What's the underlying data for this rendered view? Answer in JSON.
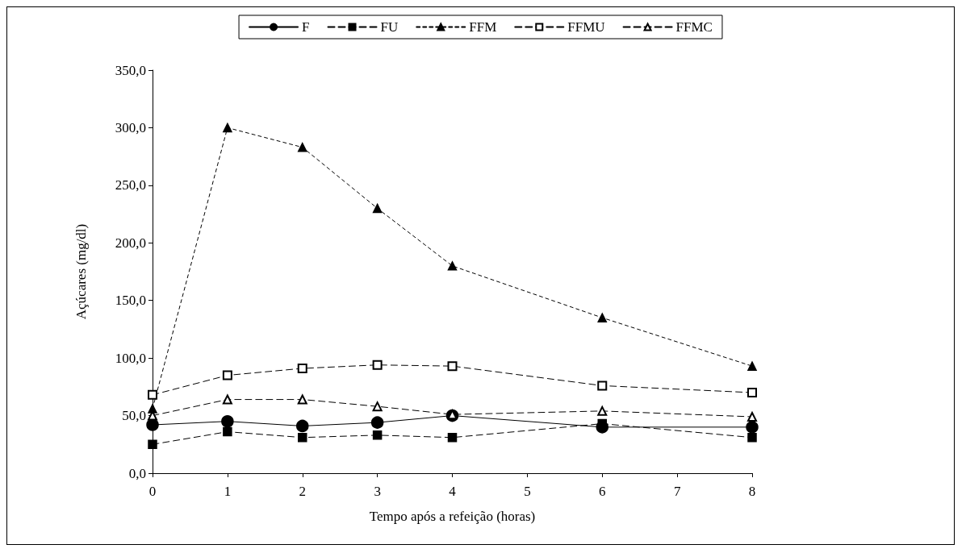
{
  "chart_data": {
    "type": "line",
    "xlabel": "Tempo após a refeição (horas)",
    "ylabel": "Açúcares (mg/dl)",
    "x": [
      0,
      1,
      2,
      3,
      4,
      6,
      8
    ],
    "xlim": [
      0,
      8
    ],
    "xticks": [
      0,
      1,
      2,
      3,
      4,
      5,
      6,
      7,
      8
    ],
    "ylim": [
      0,
      350
    ],
    "yticks": [
      {
        "value": 0,
        "label": "0,0"
      },
      {
        "value": 50,
        "label": "50,0"
      },
      {
        "value": 100,
        "label": "100,0"
      },
      {
        "value": 150,
        "label": "150,0"
      },
      {
        "value": 200,
        "label": "200,0"
      },
      {
        "value": 250,
        "label": "250,0"
      },
      {
        "value": 300,
        "label": "300,0"
      },
      {
        "value": 350,
        "label": "350,0"
      }
    ],
    "grid": false,
    "legend": "top",
    "series": [
      {
        "name": "F",
        "color": "#000000",
        "marker": "circle",
        "line_style": "solid",
        "values": [
          42,
          45,
          41,
          44,
          50,
          40,
          40
        ]
      },
      {
        "name": "FU",
        "color": "#000000",
        "marker": "square",
        "line_style": "dashed",
        "values": [
          25,
          36,
          31,
          33,
          31,
          43,
          31
        ]
      },
      {
        "name": "FFM",
        "color": "#000000",
        "marker": "triangle",
        "line_style": "dotted",
        "values": [
          56,
          300,
          283,
          230,
          180,
          135,
          93
        ]
      },
      {
        "name": "FFMU",
        "color": "#000000",
        "marker": "square_open",
        "line_style": "dashed",
        "values": [
          68,
          85,
          91,
          94,
          93,
          76,
          70
        ]
      },
      {
        "name": "FFMC",
        "color": "#000000",
        "marker": "triangle_open",
        "line_style": "dashed",
        "values": [
          50,
          64,
          64,
          58,
          51,
          54,
          49
        ]
      }
    ]
  }
}
